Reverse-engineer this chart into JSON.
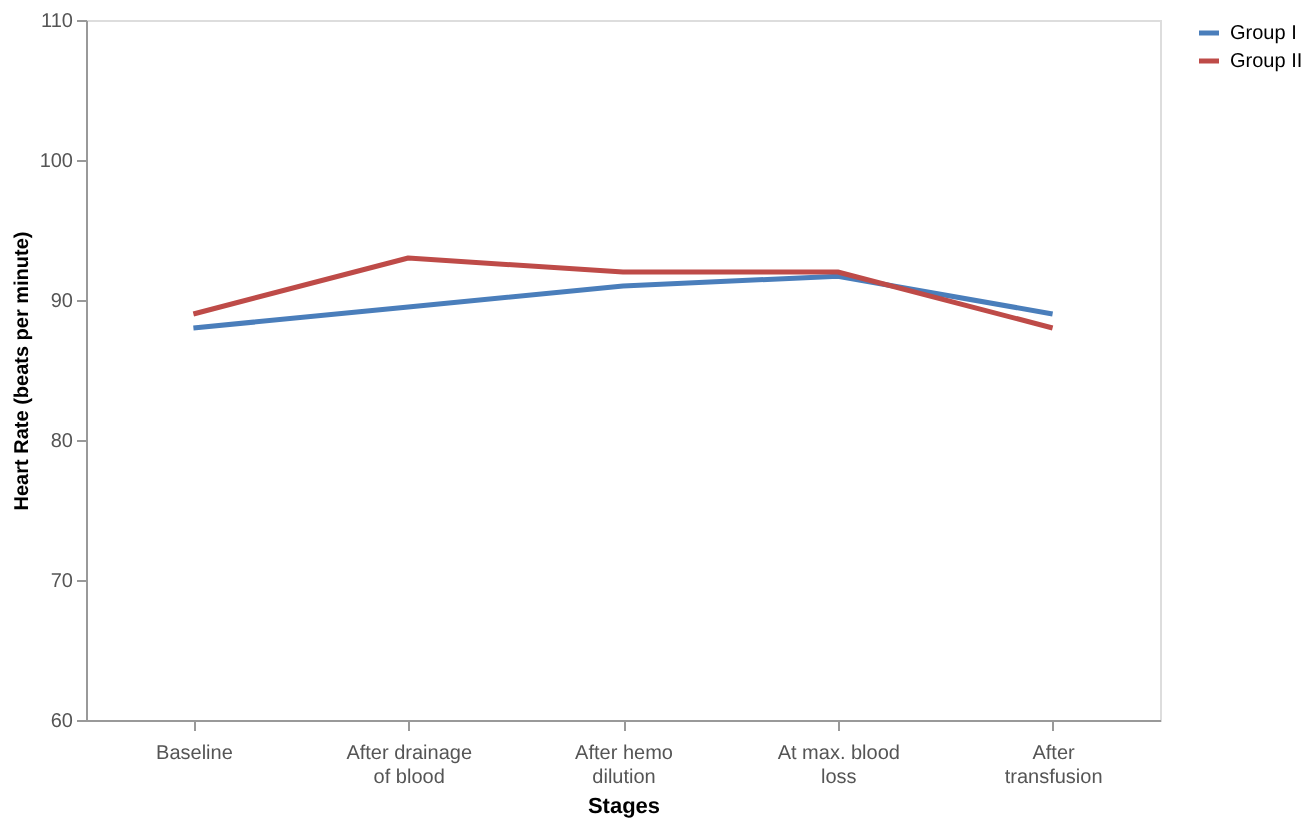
{
  "chart_data": {
    "type": "line",
    "xlabel": "Stages",
    "ylabel": "Heart Rate (beats per minute)",
    "categories": [
      "Baseline",
      "After drainage of blood",
      "After hemo dilution",
      "At max. blood loss",
      "After transfusion"
    ],
    "series": [
      {
        "name": "Group I",
        "color": "#4a7ebb",
        "values": [
          88,
          89.5,
          91,
          91.7,
          89
        ]
      },
      {
        "name": "Group II",
        "color": "#be4b48",
        "values": [
          89,
          93,
          92,
          92,
          88
        ]
      }
    ],
    "ylim": [
      60,
      110
    ],
    "yticks": [
      60,
      70,
      80,
      90,
      100,
      110
    ],
    "grid": false,
    "legend": "right",
    "marker": "none",
    "line_style": "solid"
  }
}
